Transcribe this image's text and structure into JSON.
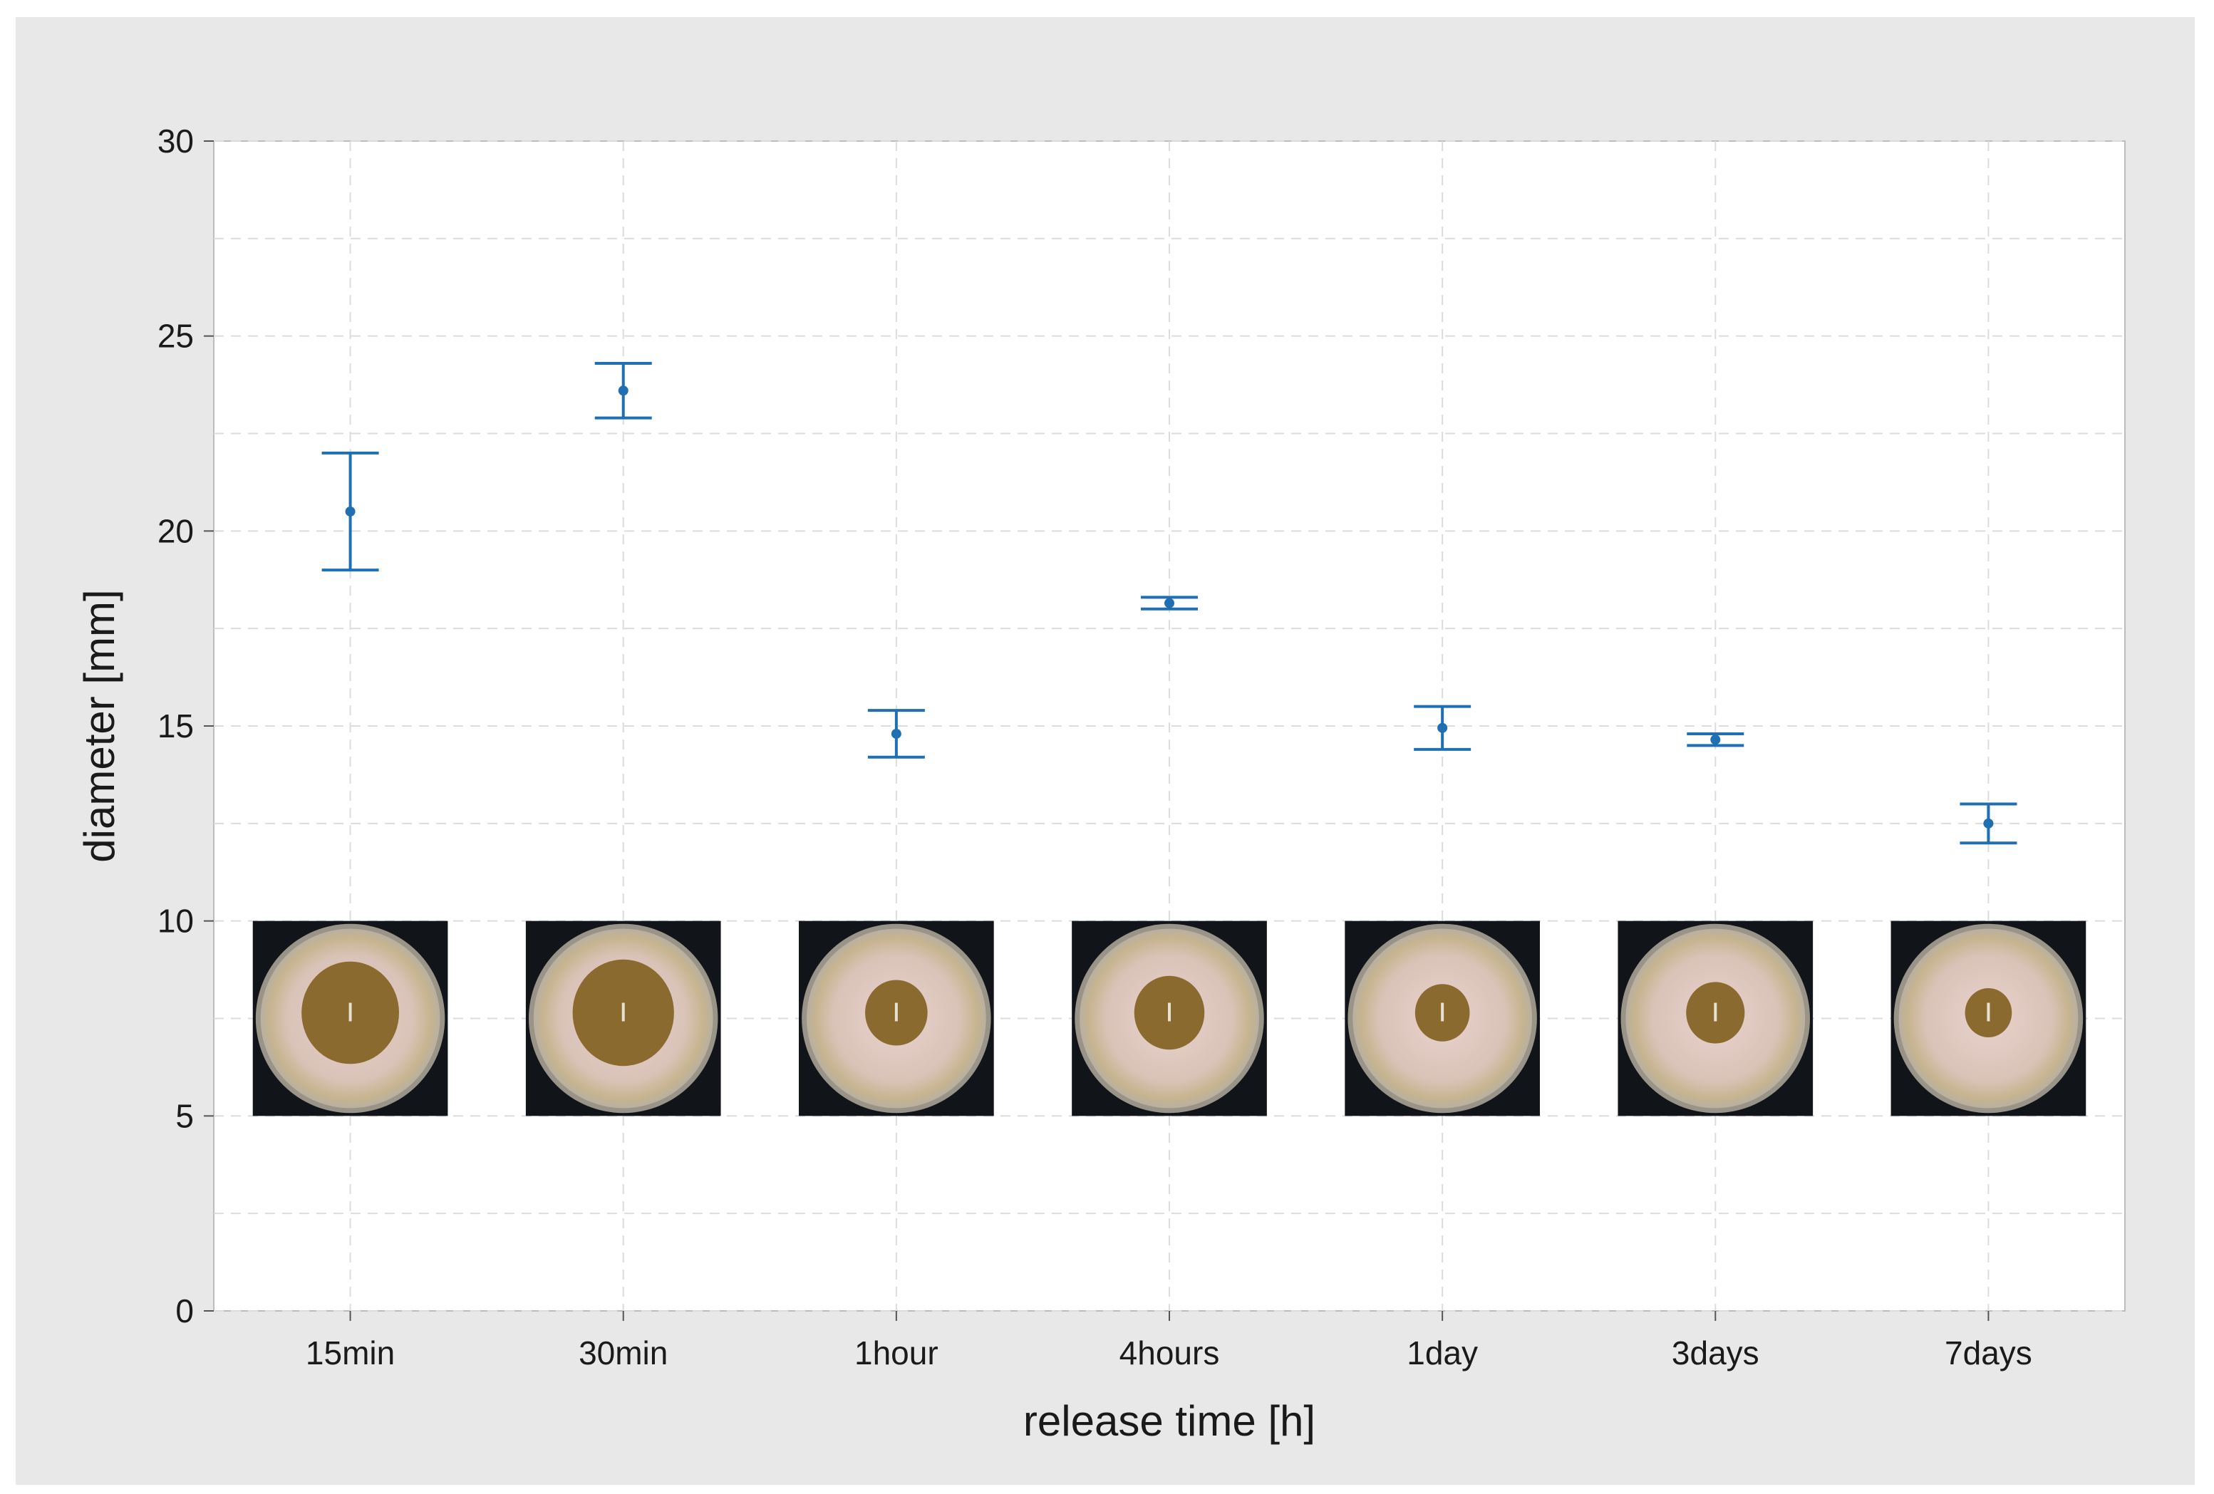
{
  "chart_data": {
    "type": "scatter",
    "title": "",
    "xlabel": "release time [h]",
    "ylabel": "diameter [mm]",
    "categories": [
      "15min",
      "30min",
      "1hour",
      "4hours",
      "1day",
      "3days",
      "7days"
    ],
    "series": [
      {
        "values": [
          20.5,
          23.6,
          14.8,
          18.15,
          14.95,
          14.65,
          12.5
        ],
        "error_low": [
          19.0,
          22.9,
          14.2,
          18.0,
          14.4,
          14.5,
          12.0
        ],
        "error_high": [
          22.0,
          24.3,
          15.4,
          18.3,
          15.5,
          14.8,
          13.0
        ]
      }
    ],
    "ylim": [
      0,
      30
    ],
    "yticks": [
      0,
      5,
      10,
      15,
      20,
      25,
      30
    ],
    "grid": true,
    "legend": "none",
    "colors": {
      "marker": "#1f6fb2",
      "grid": "#dcdcdc",
      "axis": "#bdbdbd",
      "frame_bg": "#e8e8e8",
      "plot_bg": "#ffffff"
    },
    "inset_images": {
      "description_icon": "petri-dish-photo",
      "y_range": [
        5,
        10
      ]
    }
  }
}
